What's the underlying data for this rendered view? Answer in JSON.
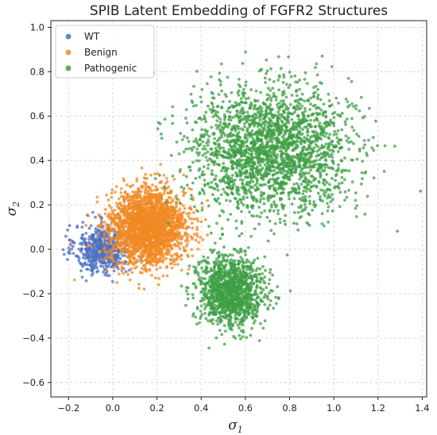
{
  "chart_data": {
    "type": "scatter",
    "title": "SPIB Latent Embedding of FGFR2 Structures",
    "xlabel": "σ",
    "xlabel_sub": "1",
    "ylabel": "σ",
    "ylabel_sub": "2",
    "xlim": [
      -0.28,
      1.42
    ],
    "ylim": [
      -0.665,
      1.03
    ],
    "xticks": [
      -0.2,
      0.0,
      0.2,
      0.4,
      0.6,
      0.8,
      1.0,
      1.2,
      1.4
    ],
    "xtick_labels": [
      "−0.2",
      "0.0",
      "0.2",
      "0.4",
      "0.6",
      "0.8",
      "1.0",
      "1.2",
      "1.4"
    ],
    "yticks": [
      -0.6,
      -0.4,
      -0.2,
      0.0,
      0.2,
      0.4,
      0.6,
      0.8,
      1.0
    ],
    "ytick_labels": [
      "−0.6",
      "−0.4",
      "−0.2",
      "0.0",
      "0.2",
      "0.4",
      "0.6",
      "0.8",
      "1.0"
    ],
    "grid": true,
    "legend_position": "top-left",
    "series": [
      {
        "name": "WT",
        "color": "#4c72c4",
        "clusters": [
          {
            "center": [
              -0.05,
              0.0
            ],
            "std": [
              0.06,
              0.055
            ],
            "count": 550
          }
        ]
      },
      {
        "name": "Benign",
        "color": "#f08a24",
        "clusters": [
          {
            "center": [
              0.16,
              0.1
            ],
            "std": [
              0.085,
              0.085
            ],
            "count": 2300
          }
        ]
      },
      {
        "name": "Pathogenic",
        "color": "#3f9f45",
        "clusters": [
          {
            "center": [
              0.72,
              0.45
            ],
            "std": [
              0.18,
              0.14
            ],
            "count": 2300
          },
          {
            "center": [
              0.53,
              -0.19
            ],
            "std": [
              0.075,
              0.08
            ],
            "count": 1250
          }
        ]
      }
    ]
  }
}
